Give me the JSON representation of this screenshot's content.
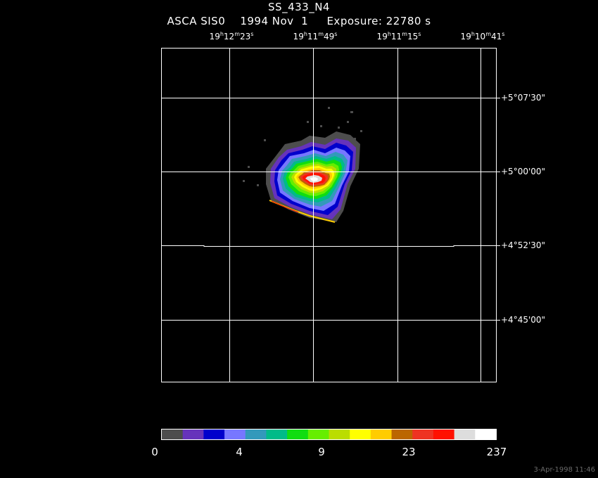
{
  "header": {
    "title": "SS_433_N4",
    "subtitle": "ASCA SIS0    1994 Nov  1     Exposure: 22780 s"
  },
  "ra_labels": [
    {
      "h": "19",
      "m": "12",
      "s": "23"
    },
    {
      "h": "19",
      "m": "11",
      "s": "49"
    },
    {
      "h": "19",
      "m": "11",
      "s": "15"
    },
    {
      "h": "19",
      "m": "10",
      "s": "41"
    }
  ],
  "dec_labels": [
    "+5°07'30\"",
    "+5°00'00\"",
    "+4°52'30\"",
    "+4°45'00\""
  ],
  "colorbar": {
    "colors": [
      "#4d4d4d",
      "#6633bb",
      "#0000cc",
      "#7777ff",
      "#3399bb",
      "#00bb88",
      "#11dd11",
      "#66ee00",
      "#bbdd00",
      "#ffff00",
      "#ffcc00",
      "#bb6600",
      "#ee3322",
      "#ff1100",
      "#dddddd",
      "#ffffff"
    ],
    "labels": [
      "0",
      "4",
      "9",
      "23",
      "237"
    ]
  },
  "timestamp": "3-Apr-1998 11:46"
}
